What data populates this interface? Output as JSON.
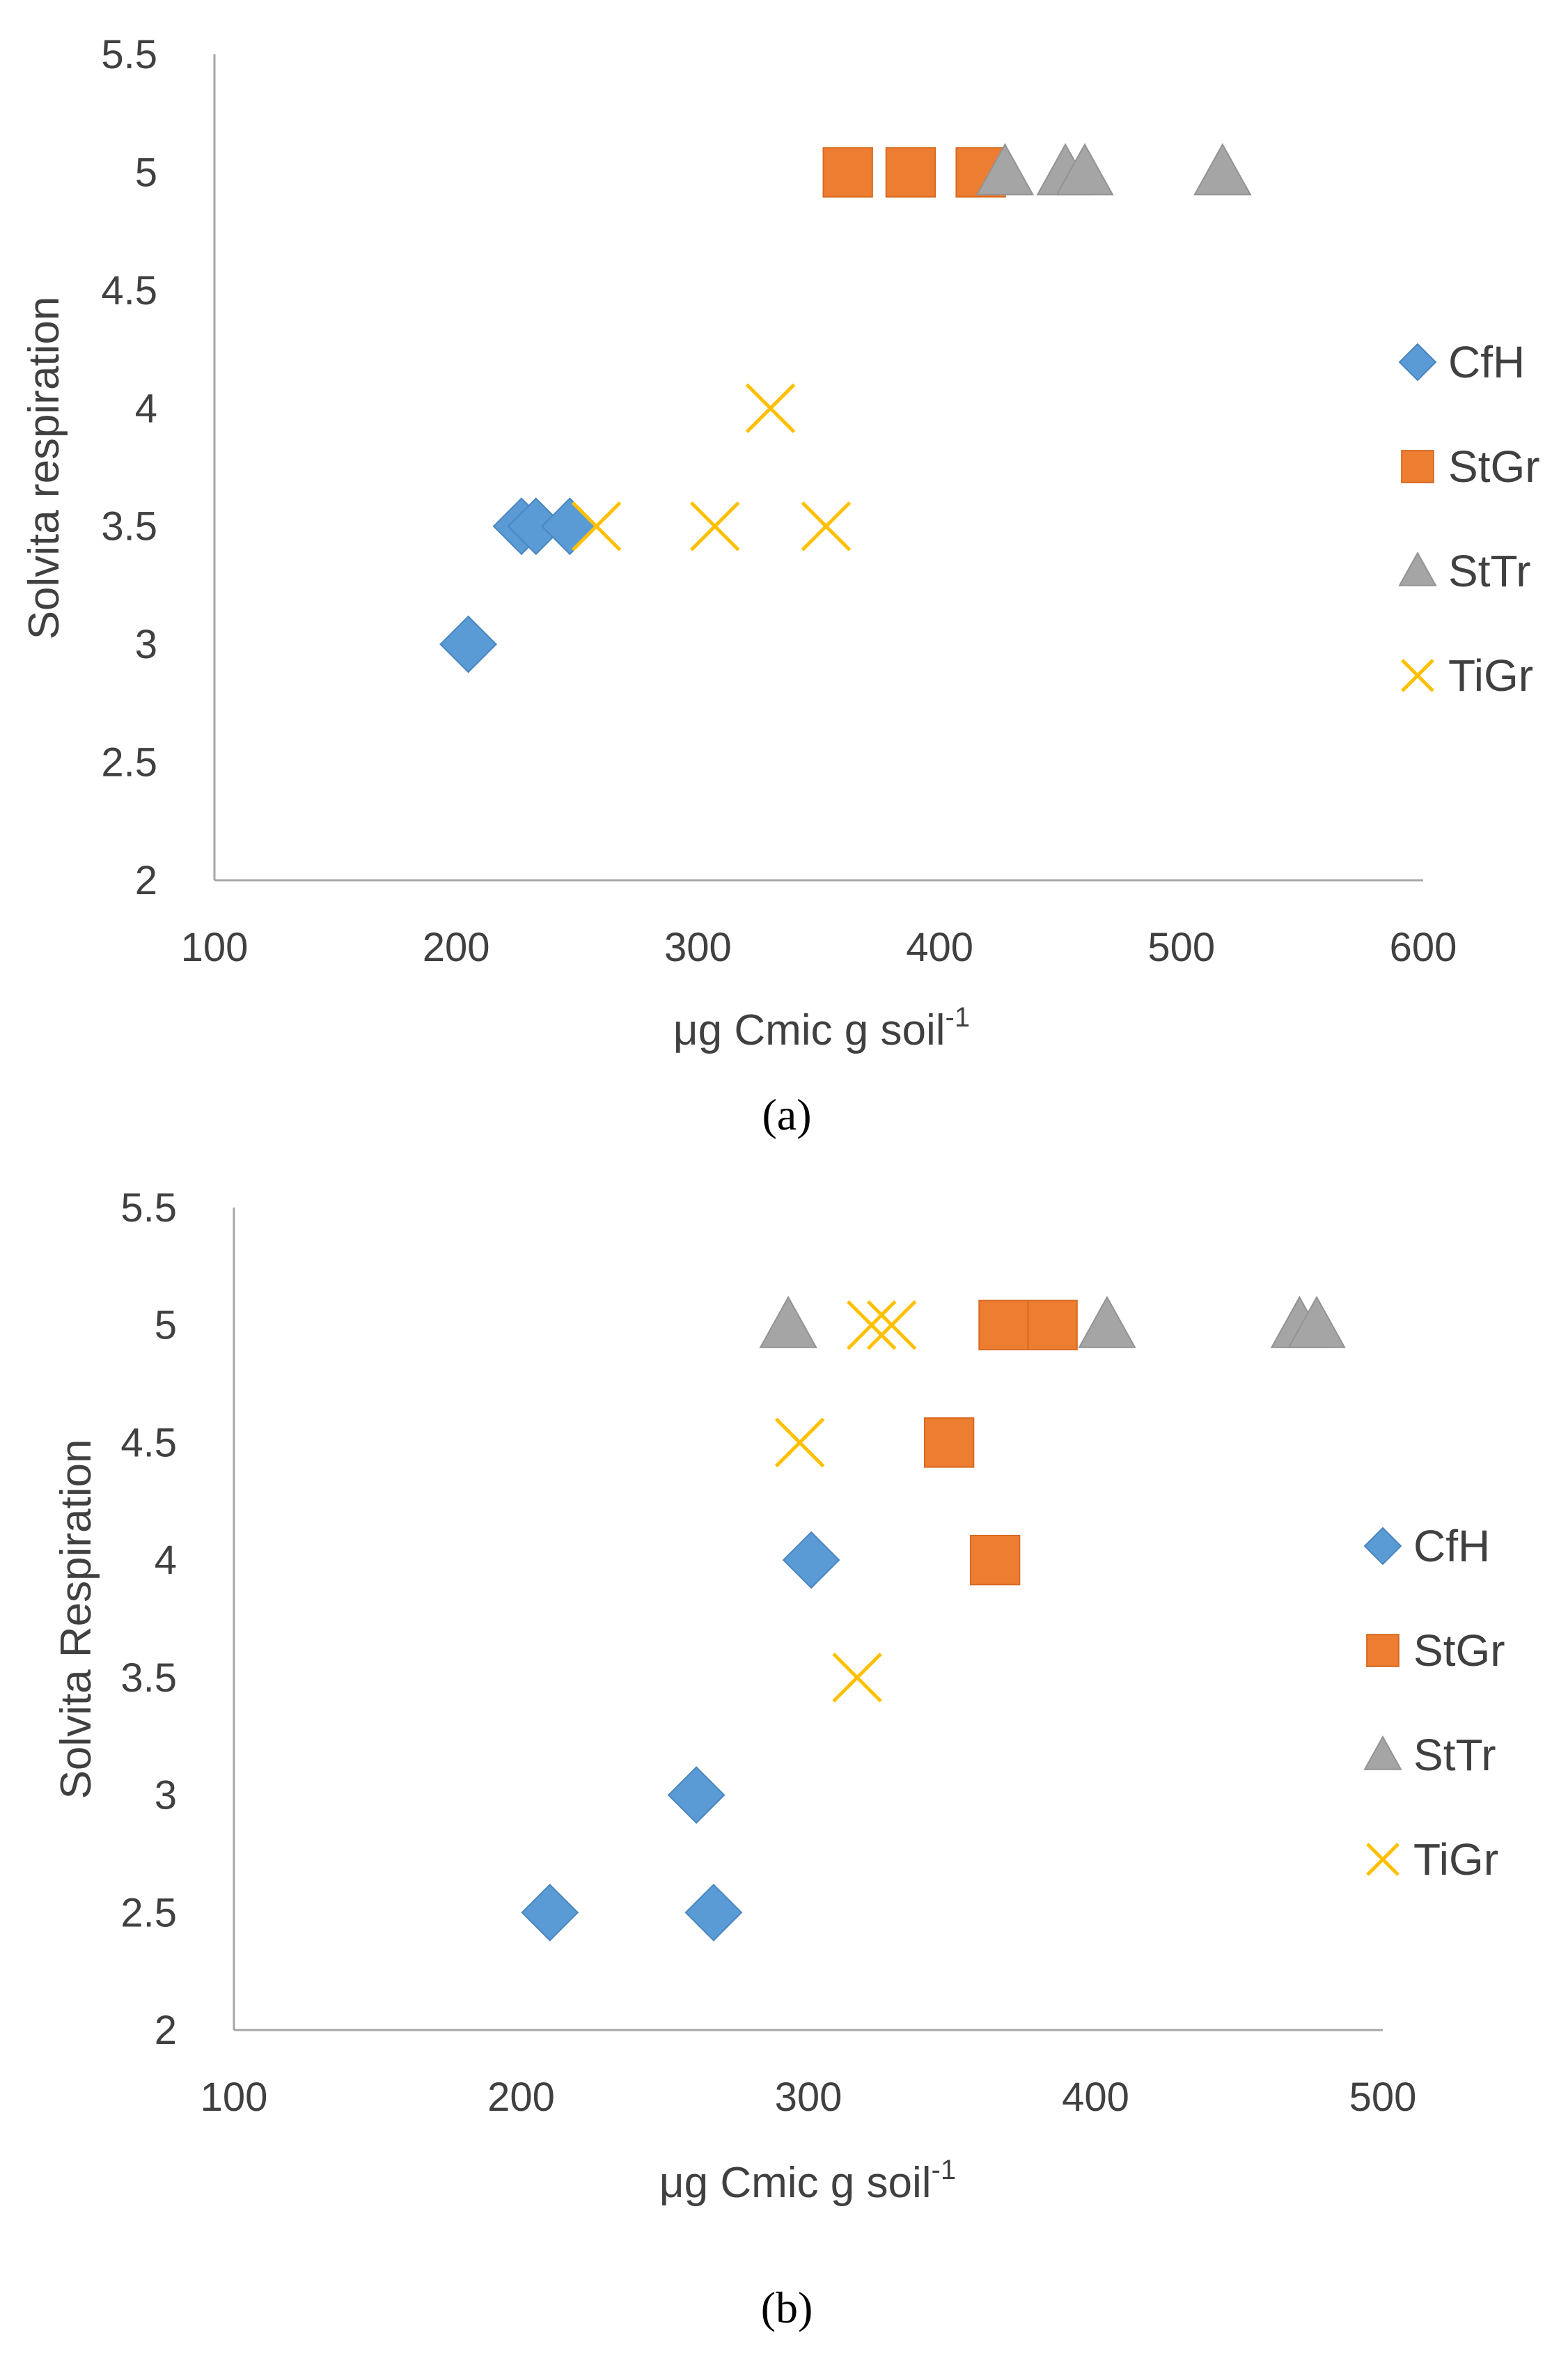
{
  "chart_data": [
    {
      "type": "scatter",
      "panel_label": "(a)",
      "xlabel": "μg Cmic g soil",
      "xlabel_sup": "-1",
      "ylabel": "Solvita respiration",
      "xlim": [
        100,
        600
      ],
      "ylim": [
        2,
        5.5
      ],
      "xticks": [
        "100",
        "200",
        "300",
        "400",
        "500",
        "600"
      ],
      "yticks": [
        "2",
        "2.5",
        "3",
        "3.5",
        "4",
        "4.5",
        "5",
        "5.5"
      ],
      "legend_position": "right",
      "series": [
        {
          "name": "CfH",
          "marker": "diamond",
          "color": "#5b9bd5",
          "points": [
            [
              205,
              3
            ],
            [
              227,
              3.5
            ],
            [
              233,
              3.5
            ],
            [
              247,
              3.5
            ]
          ]
        },
        {
          "name": "StGr",
          "marker": "square",
          "color": "#ed7d31",
          "points": [
            [
              362,
              5
            ],
            [
              388,
              5
            ],
            [
              417,
              5
            ]
          ]
        },
        {
          "name": "StTr",
          "marker": "triangle",
          "color": "#a5a5a5",
          "points": [
            [
              427,
              5
            ],
            [
              452,
              5
            ],
            [
              460,
              5
            ],
            [
              517,
              5
            ]
          ]
        },
        {
          "name": "TiGr",
          "marker": "x",
          "color": "#ffc000",
          "points": [
            [
              258,
              3.5
            ],
            [
              307,
              3.5
            ],
            [
              353,
              3.5
            ],
            [
              330,
              4
            ]
          ]
        }
      ]
    },
    {
      "type": "scatter",
      "panel_label": "(b)",
      "xlabel": "μg Cmic g soil",
      "xlabel_sup": "-1",
      "ylabel": "Solvita Respiration",
      "xlim": [
        100,
        500
      ],
      "ylim": [
        2,
        5.5
      ],
      "xticks": [
        "100",
        "200",
        "300",
        "400",
        "500"
      ],
      "yticks": [
        "2",
        "2.5",
        "3",
        "3.5",
        "4",
        "4.5",
        "5",
        "5.5"
      ],
      "legend_position": "right",
      "series": [
        {
          "name": "CfH",
          "marker": "diamond",
          "color": "#5b9bd5",
          "points": [
            [
              210,
              2.5
            ],
            [
              267,
              2.5
            ],
            [
              261,
              3
            ],
            [
              301,
              4
            ]
          ]
        },
        {
          "name": "StGr",
          "marker": "square",
          "color": "#ed7d31",
          "points": [
            [
              368,
              5
            ],
            [
              385,
              5
            ],
            [
              349,
              4.5
            ],
            [
              365,
              4
            ]
          ]
        },
        {
          "name": "StTr",
          "marker": "triangle",
          "color": "#a5a5a5",
          "points": [
            [
              293,
              5
            ],
            [
              404,
              5
            ],
            [
              471,
              5
            ],
            [
              477,
              5
            ]
          ]
        },
        {
          "name": "TiGr",
          "marker": "x",
          "color": "#ffc000",
          "points": [
            [
              322,
              5
            ],
            [
              329,
              5
            ],
            [
              297,
              4.5
            ],
            [
              317,
              3.5
            ]
          ]
        }
      ]
    }
  ]
}
